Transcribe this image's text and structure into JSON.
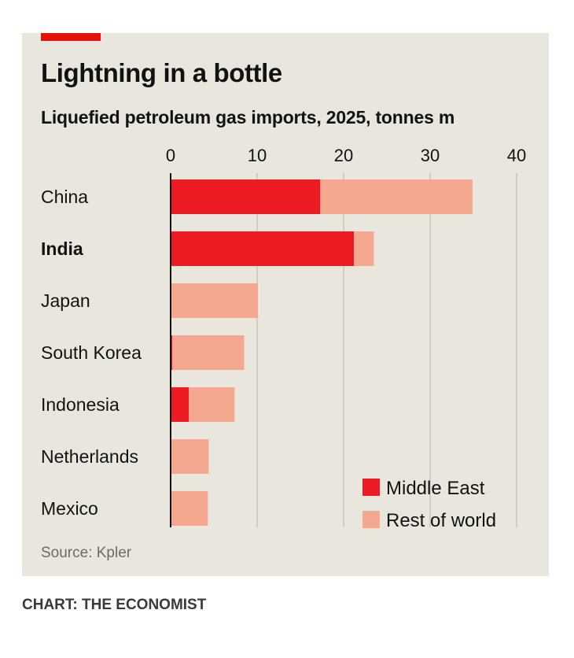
{
  "colors": {
    "accent": "#e3120b",
    "middle_east": "#ed1c24",
    "rest_of_world": "#f5a890",
    "gridline": "#c7c4bb",
    "axis": "#121212",
    "panel": "#e9e6dd"
  },
  "credit": "CHART: THE ECONOMIST",
  "chart_data": {
    "type": "bar",
    "orientation": "horizontal",
    "stacked": true,
    "title": "Lightning in a bottle",
    "subtitle": "Liquefied petroleum gas imports, 2025, tonnes m",
    "source": "Source: Kpler",
    "xlim": [
      0,
      40
    ],
    "xticks": [
      0,
      10,
      20,
      30,
      40
    ],
    "grid": true,
    "legend_position": "bottom-right",
    "highlight_category": "India",
    "categories": [
      "China",
      "India",
      "Japan",
      "South Korea",
      "Indonesia",
      "Netherlands",
      "Mexico"
    ],
    "series": [
      {
        "name": "Middle East",
        "color_key": "middle_east",
        "values": [
          17.3,
          21.2,
          0,
          0.2,
          2.1,
          0,
          0
        ]
      },
      {
        "name": "Rest of world",
        "color_key": "rest_of_world",
        "values": [
          17.6,
          2.3,
          10.1,
          8.3,
          5.3,
          4.4,
          4.3
        ]
      }
    ]
  }
}
